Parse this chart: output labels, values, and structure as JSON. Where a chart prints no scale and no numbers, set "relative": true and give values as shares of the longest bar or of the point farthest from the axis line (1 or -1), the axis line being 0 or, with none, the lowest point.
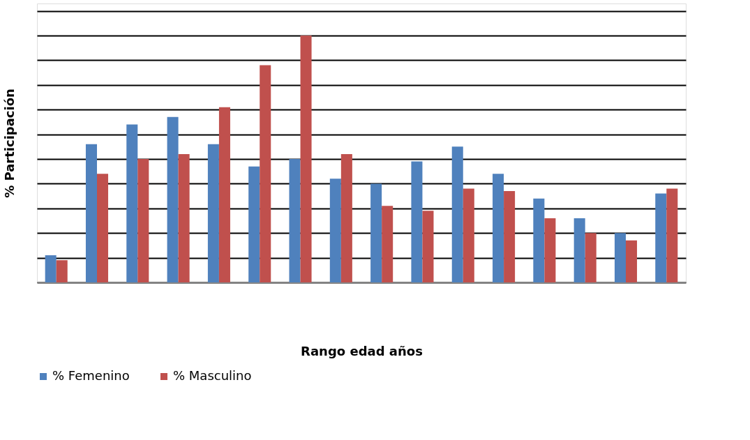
{
  "chart_data": {
    "type": "bar",
    "relative": true,
    "xlabel": "Rango edad años",
    "ylabel": "% Participación",
    "categories": [
      null,
      null,
      null,
      null,
      null,
      null,
      null,
      null,
      null,
      null,
      null,
      null,
      null,
      null,
      null,
      null
    ],
    "series": [
      {
        "name": "% Femenino",
        "color": "#4f81bd",
        "values": [
          0.11,
          0.56,
          0.64,
          0.67,
          0.56,
          0.47,
          0.5,
          0.42,
          0.4,
          0.49,
          0.55,
          0.44,
          0.34,
          0.26,
          0.2,
          0.36
        ]
      },
      {
        "name": "% Masculino",
        "color": "#c0504d",
        "values": [
          0.09,
          0.44,
          0.5,
          0.52,
          0.71,
          0.88,
          1,
          0.52,
          0.31,
          0.29,
          0.38,
          0.37,
          0.26,
          0.2,
          0.17,
          0.38
        ]
      }
    ],
    "grid": "y",
    "legend": "bottom",
    "tick_labels": false
  }
}
